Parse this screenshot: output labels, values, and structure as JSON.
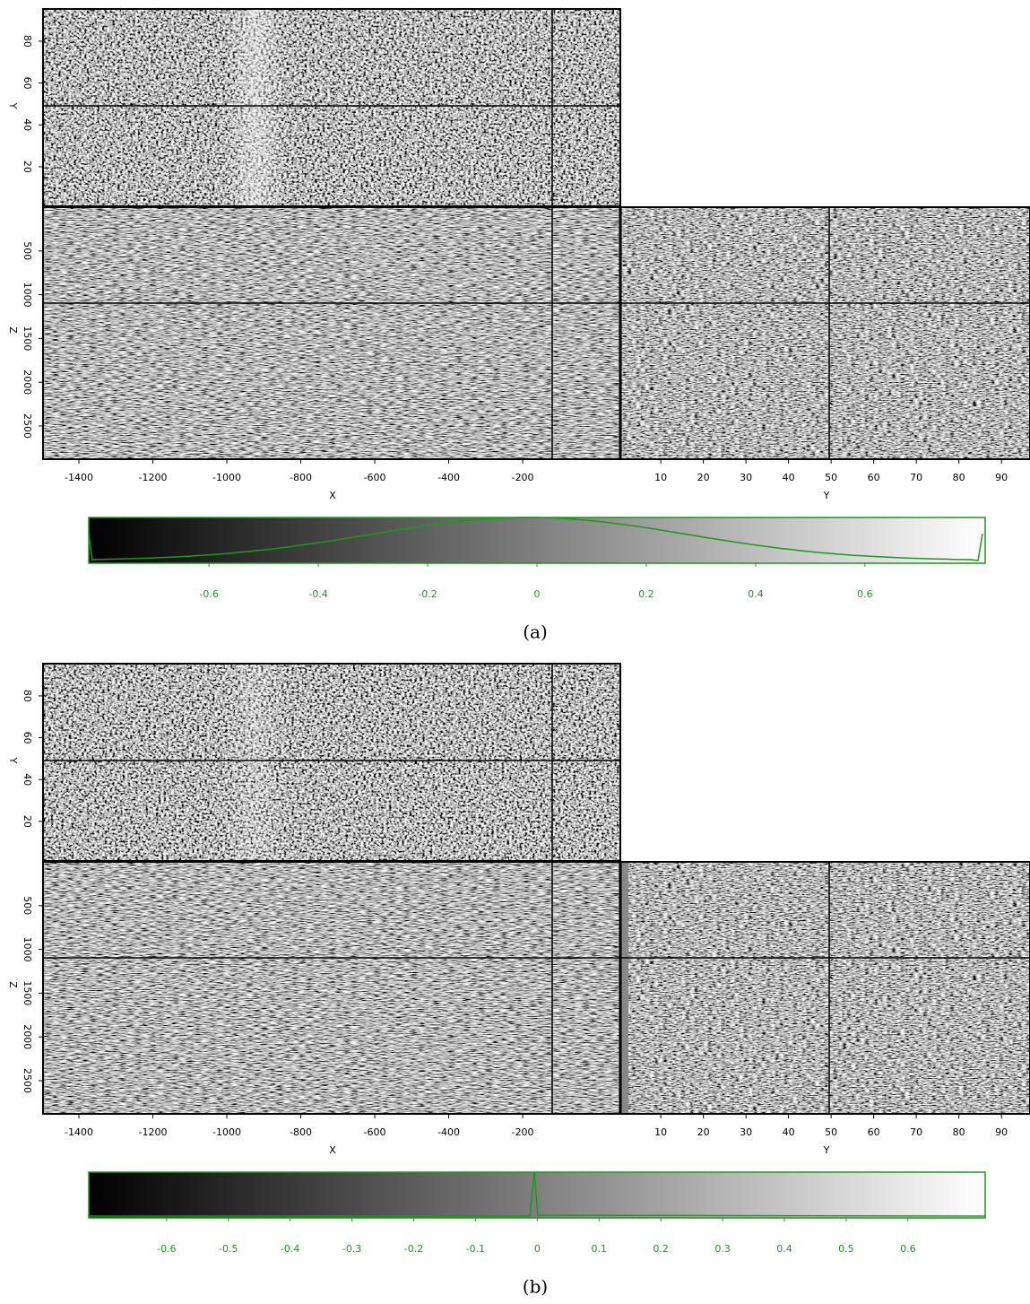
{
  "panels": [
    {
      "caption": "(a)",
      "x_axis": {
        "label": "X",
        "lim": [
          -1497,
          64
        ],
        "ticks": [
          -1400,
          -1200,
          -1000,
          -800,
          -600,
          -400,
          -200
        ]
      },
      "y_axis": {
        "label": "Y",
        "lim": [
          0.5,
          96.7
        ],
        "ticks": [
          10,
          20,
          30,
          40,
          50,
          60,
          70,
          80,
          90
        ]
      },
      "y_axis_left": {
        "label": "Y",
        "lim": [
          1.1,
          95.4
        ],
        "ticks": [
          20,
          40,
          60,
          80
        ]
      },
      "z_axis": {
        "label": "Z",
        "lim": [
          0,
          2879
        ],
        "ticks": [
          500,
          1000,
          1500,
          2000,
          2500
        ]
      },
      "colorbar": {
        "lim": [
          -0.82,
          0.82
        ],
        "ticks": [
          -0.6,
          -0.4,
          -0.2,
          0,
          0.2,
          0.4,
          0.6
        ]
      }
    },
    {
      "caption": "(b)",
      "x_axis": {
        "label": "X",
        "lim": [
          -1497,
          64
        ],
        "ticks": [
          -1400,
          -1200,
          -1000,
          -800,
          -600,
          -400,
          -200
        ]
      },
      "y_axis": {
        "label": "Y",
        "lim": [
          0.5,
          96.7
        ],
        "ticks": [
          10,
          20,
          30,
          40,
          50,
          60,
          70,
          80,
          90
        ]
      },
      "y_axis_left": {
        "label": "Y",
        "lim": [
          1.1,
          95.4
        ],
        "ticks": [
          20,
          40,
          60,
          80
        ]
      },
      "z_axis": {
        "label": "Z",
        "lim": [
          0,
          2879
        ],
        "ticks": [
          500,
          1000,
          1500,
          2000,
          2500
        ]
      },
      "colorbar": {
        "lim": [
          -0.726,
          0.725
        ],
        "ticks": [
          -0.6,
          -0.5,
          -0.4,
          -0.3,
          -0.2,
          -0.1,
          0,
          0.1,
          0.2,
          0.3,
          0.4,
          0.5,
          0.6
        ]
      }
    }
  ]
}
